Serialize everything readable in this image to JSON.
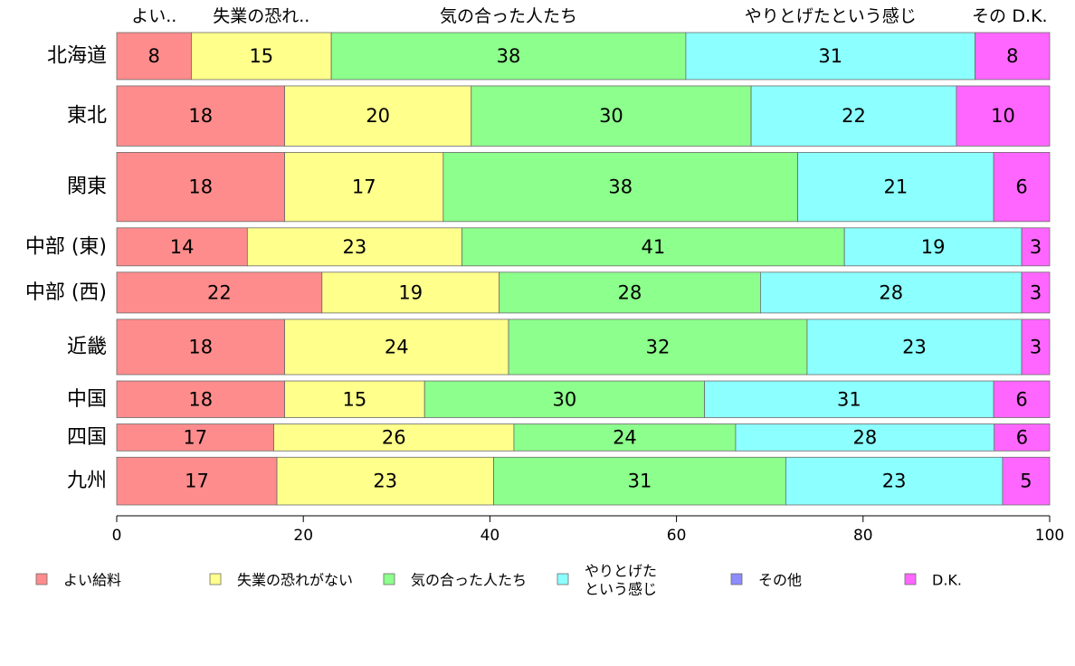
{
  "chart_data": {
    "type": "bar",
    "orientation": "horizontal",
    "stacked": true,
    "categories": [
      "北海道",
      "東北",
      "関東",
      "中部 (東)",
      "中部 (西)",
      "近畿",
      "中国",
      "四国",
      "九州"
    ],
    "series": [
      {
        "name": "よい給料",
        "top_label": "よい..",
        "color": "#ff8c8c",
        "values": [
          8,
          18,
          18,
          14,
          22,
          18,
          18,
          17,
          17
        ]
      },
      {
        "name": "失業の恐れがない",
        "top_label": "失業の恐れ..",
        "color": "#ffff8c",
        "values": [
          15,
          20,
          17,
          23,
          19,
          24,
          15,
          26,
          23
        ]
      },
      {
        "name": "気の合った人たち",
        "top_label": "気の合った人たち",
        "color": "#8cff8c",
        "values": [
          38,
          30,
          38,
          41,
          28,
          32,
          30,
          24,
          31
        ]
      },
      {
        "name": "やりとげたという感じ",
        "legend_lines": [
          "やりとげた",
          "という感じ"
        ],
        "top_label": "やりとげたという感じ",
        "color": "#8cffff",
        "values": [
          31,
          22,
          21,
          19,
          28,
          23,
          31,
          28,
          23
        ]
      },
      {
        "name": "その他",
        "top_label": "その",
        "color": "#8c8cff",
        "values": [
          0,
          0,
          0,
          0,
          0,
          0,
          0,
          0,
          0
        ]
      },
      {
        "name": "D.K.",
        "top_label": "D.K.",
        "color": "#ff66ff",
        "values": [
          8,
          10,
          6,
          3,
          3,
          3,
          6,
          6,
          5
        ]
      }
    ],
    "row_weights": [
      0.68,
      0.87,
      1.0,
      0.55,
      0.59,
      0.8,
      0.53,
      0.39,
      0.69
    ],
    "xlim": [
      0,
      100
    ],
    "xticks": [
      0,
      20,
      40,
      60,
      80,
      100
    ],
    "xlabel": "",
    "ylabel": "",
    "title": "",
    "grid": false,
    "legend_position": "bottom"
  }
}
